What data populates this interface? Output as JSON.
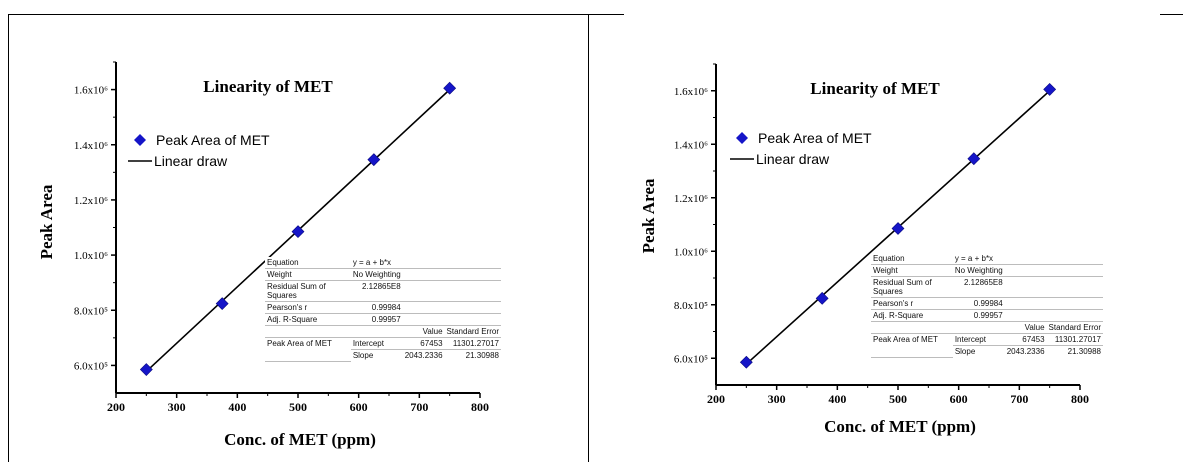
{
  "chart_data": [
    {
      "type": "scatter",
      "title": "Linearity of MET",
      "xlabel": "Conc. of MET (ppm)",
      "ylabel": "Peak Area",
      "xlim": [
        200,
        800
      ],
      "ylim": [
        500000,
        1700000
      ],
      "x_ticks": [
        "200",
        "300",
        "400",
        "500",
        "600",
        "700",
        "800"
      ],
      "y_ticks": [
        "6.0x10⁵",
        "8.0x10⁵",
        "1.0x10⁶",
        "1.2x10⁶",
        "1.4x10⁶",
        "1.6x10⁶"
      ],
      "series": [
        {
          "name": "Peak Area of MET",
          "kind": "marker",
          "x": [
            250,
            375,
            500,
            625,
            750
          ],
          "y": [
            585000,
            824000,
            1085000,
            1346000,
            1605000
          ]
        },
        {
          "name": "Linear draw",
          "kind": "line",
          "intercept": 67453,
          "slope": 2043.2336
        }
      ],
      "legend_position": "top-left",
      "stats_table": {
        "equation_label": "Equation",
        "equation": "y = a + b*x",
        "weight_label": "Weight",
        "weight": "No Weighting",
        "rss_label": "Residual Sum of Squares",
        "rss": "2.12865E8",
        "pearson_label": "Pearson's r",
        "pearson": "0.99984",
        "adjr2_label": "Adj. R-Square",
        "adjr2": "0.99957",
        "value_header": "Value",
        "error_header": "Standard Error",
        "row_label": "Peak Area of MET",
        "intercept_label": "Intercept",
        "intercept_value": "67453",
        "intercept_error": "11301.27017",
        "slope_label": "Slope",
        "slope_value": "2043.2336",
        "slope_error": "21.30988"
      }
    },
    {
      "type": "scatter",
      "title": "Linearity of MET",
      "xlabel": "Conc. of MET (ppm)",
      "ylabel": "Peak Area",
      "xlim": [
        200,
        800
      ],
      "ylim": [
        500000,
        1700000
      ],
      "x_ticks": [
        "200",
        "300",
        "400",
        "500",
        "600",
        "700",
        "800"
      ],
      "y_ticks": [
        "6.0x10⁵",
        "8.0x10⁵",
        "1.0x10⁶",
        "1.2x10⁶",
        "1.4x10⁶",
        "1.6x10⁶"
      ],
      "series": [
        {
          "name": "Peak Area of MET",
          "kind": "marker",
          "x": [
            250,
            375,
            500,
            625,
            750
          ],
          "y": [
            585000,
            824000,
            1085000,
            1346000,
            1605000
          ]
        },
        {
          "name": "Linear draw",
          "kind": "line",
          "intercept": 67453,
          "slope": 2043.2336
        }
      ],
      "legend_position": "top-left",
      "stats_table": {
        "equation_label": "Equation",
        "equation": "y = a + b*x",
        "weight_label": "Weight",
        "weight": "No Weighting",
        "rss_label": "Residual Sum of Squares",
        "rss": "2.12865E8",
        "pearson_label": "Pearson's r",
        "pearson": "0.99984",
        "adjr2_label": "Adj. R-Square",
        "adjr2": "0.99957",
        "value_header": "Value",
        "error_header": "Standard Error",
        "row_label": "Peak Area of MET",
        "intercept_label": "Intercept",
        "intercept_value": "67453",
        "intercept_error": "11301.27017",
        "slope_label": "Slope",
        "slope_value": "2043.2336",
        "slope_error": "21.30988"
      }
    }
  ],
  "colors": {
    "marker": "#1515c8",
    "line": "#000000",
    "text": "#000000"
  }
}
